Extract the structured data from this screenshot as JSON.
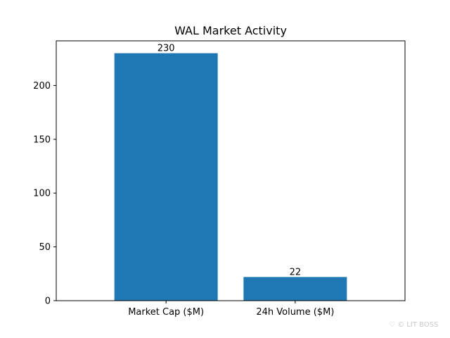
{
  "chart_data": {
    "type": "bar",
    "title": "WAL Market Activity",
    "xlabel": "",
    "ylabel": "",
    "categories": [
      "Market Cap ($M)",
      "24h Volume ($M)"
    ],
    "values": [
      230,
      22
    ],
    "data_labels": [
      "230",
      "22"
    ],
    "ylim": [
      0,
      241.5
    ],
    "yticks": [
      0,
      50,
      100,
      150,
      200
    ],
    "bar_color": "#1f77b4",
    "grid": false,
    "legend": "none"
  },
  "watermark": "© LIT BOSS"
}
